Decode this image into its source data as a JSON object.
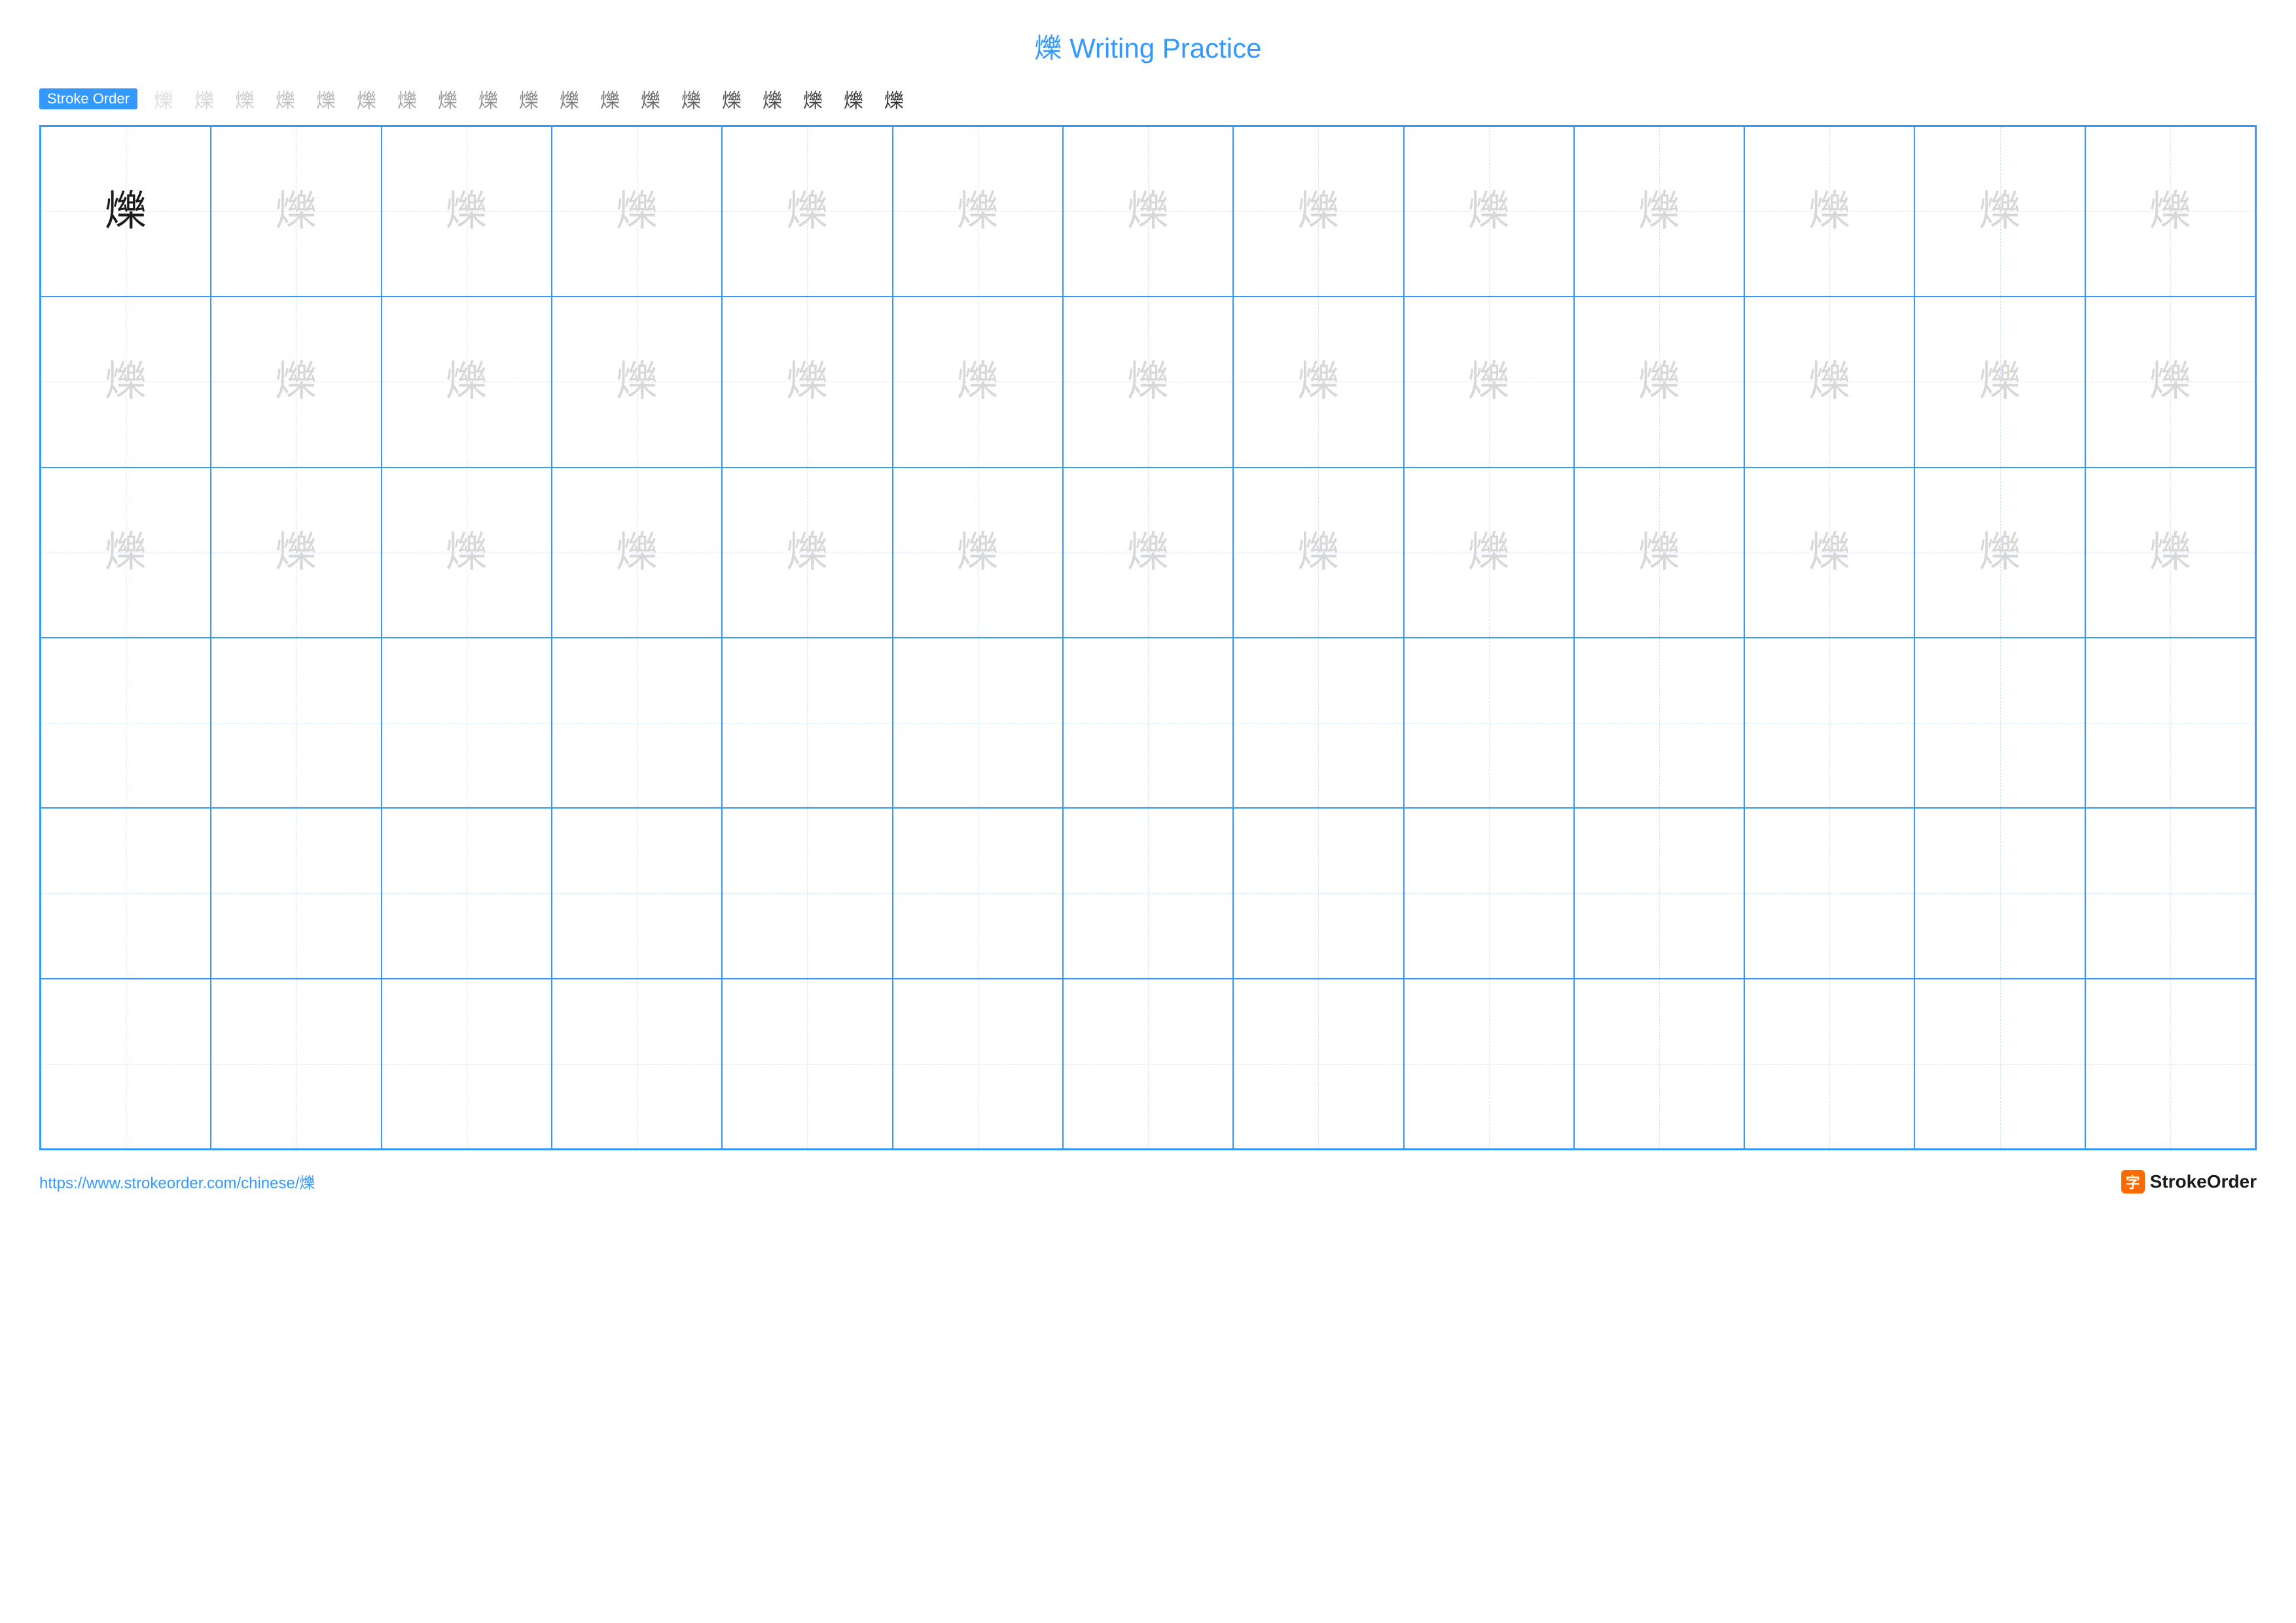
{
  "title": "爍 Writing Practice",
  "character": "爍",
  "stroke_label": "Stroke Order",
  "stroke_count": 19,
  "colors": {
    "accent": "#3399ff",
    "title": "#3399ff",
    "grid_border": "#3399ff",
    "guide_dash": "#9fcfff",
    "model_char": "#1a1a1a",
    "trace_char": "#d8d8d8",
    "url": "#3399ff",
    "brand_icon_bg": "#ff6a00",
    "brand_text": "#1a1a1a"
  },
  "grid": {
    "cols": 13,
    "rows": 6,
    "trace_rows": 3
  },
  "footer": {
    "url": "https://www.strokeorder.com/chinese/爍",
    "brand_icon": "字",
    "brand_name": "StrokeOrder"
  }
}
